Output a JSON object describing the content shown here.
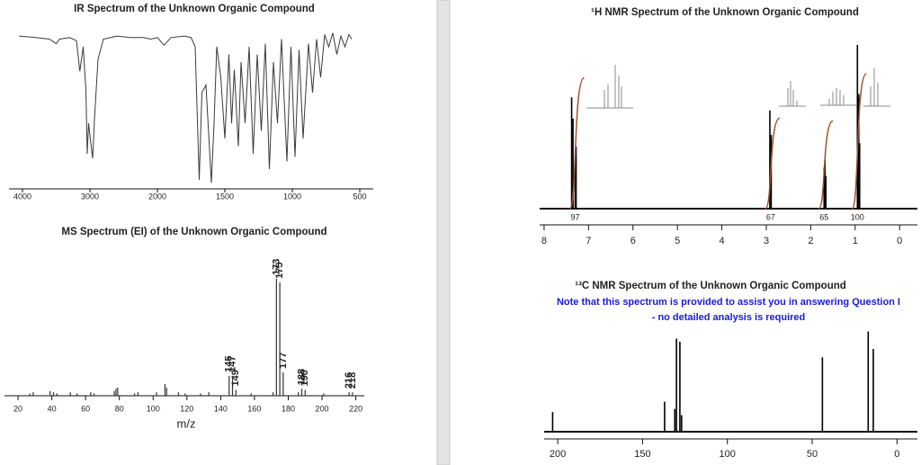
{
  "chart_data": [
    {
      "type": "line",
      "title": "IR Spectrum of the Unknown Organic Compound",
      "color": "#3a3a3a",
      "x": [
        4050,
        3800,
        3600,
        3500,
        3450,
        3300,
        3200,
        3150,
        3100,
        3060,
        3040,
        3020,
        2990,
        2960,
        2930,
        2880,
        2800,
        2600,
        2400,
        2200,
        2100,
        2000,
        1950,
        1900,
        1800,
        1750,
        1720,
        1690,
        1670,
        1640,
        1600,
        1580,
        1560,
        1530,
        1500,
        1470,
        1450,
        1430,
        1400,
        1380,
        1350,
        1320,
        1290,
        1260,
        1230,
        1200,
        1170,
        1140,
        1110,
        1080,
        1040,
        1010,
        980,
        950,
        920,
        880,
        850,
        820,
        790,
        760,
        730,
        700,
        670,
        640,
        610,
        580,
        560
      ],
      "values": [
        97,
        96,
        95,
        92,
        95,
        96,
        94,
        74,
        90,
        62,
        20,
        40,
        28,
        17,
        45,
        82,
        95,
        97,
        96,
        96,
        95,
        96,
        91,
        96,
        97,
        96,
        90,
        3,
        60,
        65,
        1,
        40,
        90,
        70,
        30,
        85,
        40,
        75,
        25,
        80,
        40,
        90,
        20,
        85,
        35,
        92,
        10,
        80,
        40,
        95,
        15,
        90,
        18,
        88,
        30,
        92,
        60,
        95,
        70,
        98,
        90,
        99,
        85,
        97,
        90,
        98,
        95
      ],
      "xlim": [
        4200,
        400
      ],
      "ylim": [
        0,
        100
      ],
      "xticks": [
        4000,
        3000,
        2000,
        1500,
        1000,
        500
      ]
    },
    {
      "type": "stem",
      "title": "MS Spectrum (EI) of the Unknown Organic Compound",
      "x_label": "m/z",
      "color": "#333333",
      "x": [
        27,
        29,
        39,
        41,
        43,
        51,
        55,
        63,
        65,
        77,
        78,
        79,
        89,
        91,
        102,
        107,
        108,
        115,
        119,
        128,
        133,
        145,
        147,
        149,
        158,
        171,
        173,
        175,
        177,
        186,
        188,
        190,
        201,
        216,
        218
      ],
      "values": [
        2,
        3,
        4,
        3,
        2,
        3,
        2,
        3,
        2,
        4,
        6,
        7,
        2,
        3,
        3,
        10,
        7,
        3,
        2,
        2,
        3,
        17,
        17,
        5,
        2,
        3,
        100,
        97,
        20,
        3,
        6,
        5,
        2,
        3,
        3
      ],
      "labeled": [
        false,
        false,
        false,
        false,
        false,
        false,
        false,
        false,
        false,
        false,
        false,
        false,
        false,
        false,
        false,
        false,
        false,
        false,
        false,
        false,
        false,
        true,
        true,
        true,
        false,
        false,
        true,
        true,
        true,
        false,
        true,
        true,
        false,
        true,
        true
      ],
      "xlim": [
        12,
        225
      ],
      "ylim": [
        0,
        100
      ],
      "xticks": [
        20,
        40,
        60,
        80,
        100,
        120,
        140,
        160,
        180,
        200,
        220
      ]
    },
    {
      "type": "stem",
      "title": "¹H NMR Spectrum of the Unknown Organic Compound",
      "color": "#000000",
      "integral_color": "#a0522d",
      "x": [
        7.38,
        7.35,
        7.3,
        7.28,
        2.92,
        2.89,
        1.7,
        1.68,
        1.66,
        0.95,
        0.92,
        0.9
      ],
      "values": [
        68,
        55,
        30,
        38,
        60,
        45,
        25,
        30,
        20,
        100,
        70,
        40
      ],
      "integrals": {
        "x": [
          7.3,
          2.9,
          1.7,
          0.95
        ],
        "values": [
          97,
          67,
          65,
          100
        ]
      },
      "xlim": [
        8.1,
        -0.4
      ],
      "ylim": [
        0,
        100
      ],
      "xticks": [
        8,
        7,
        6,
        5,
        4,
        3,
        2,
        1,
        0
      ]
    },
    {
      "type": "stem",
      "title": "¹³C NMR Spectrum of the Unknown Organic Compound",
      "color": "#000000",
      "notes": [
        "Note that this spectrum is provided to assist you in answering Question I",
        "- no detailed analysis is required"
      ],
      "x": [
        203,
        137,
        131,
        130,
        128,
        127,
        44,
        17,
        14
      ],
      "values": [
        19,
        29,
        22,
        90,
        87,
        16,
        72,
        97,
        80
      ],
      "xlim": [
        208,
        -12
      ],
      "ylim": [
        0,
        100
      ],
      "xticks": [
        200,
        150,
        100,
        50,
        0
      ]
    }
  ]
}
